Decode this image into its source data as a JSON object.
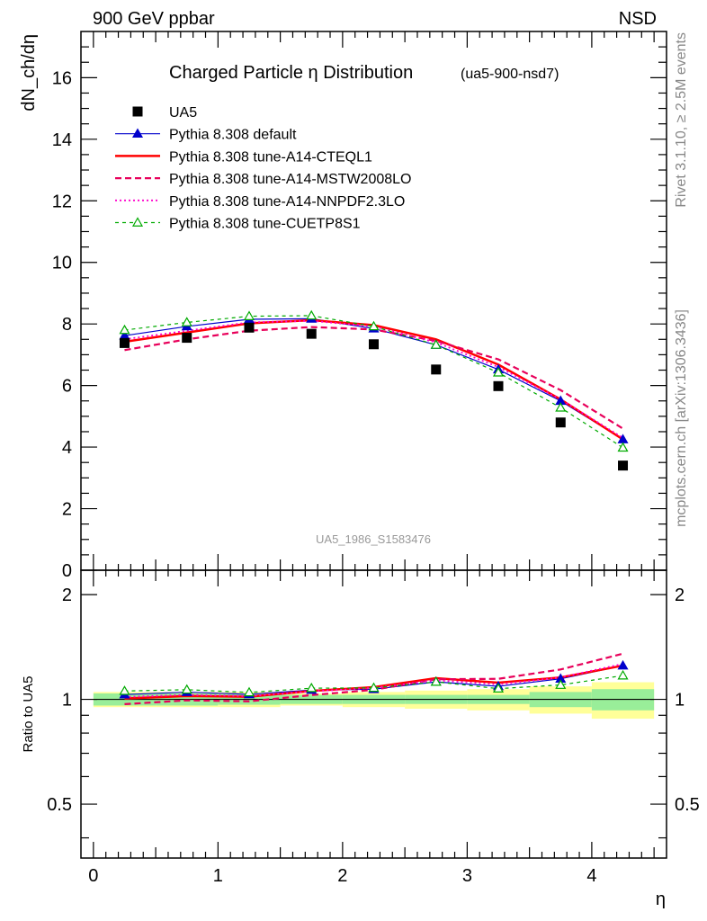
{
  "header": {
    "left": "900 GeV ppbar",
    "right": "NSD"
  },
  "side_labels": {
    "rivet": "Rivet 3.1.10, ≥ 2.5M events",
    "mcplots": "mcplots.cern.ch [arXiv:1306.3436]"
  },
  "chart_data": {
    "type": "line",
    "title": "Charged Particle η Distribution",
    "subtitle": "(ua5-900-nsd7)",
    "analysis_label": "UA5_1986_S1583476",
    "xlabel": "η",
    "ylabel": "dN_ch/dη",
    "ratio_ylabel": "Ratio to UA5",
    "xlim": [
      -0.1,
      4.6
    ],
    "ylim": [
      0,
      17.5
    ],
    "ratio_ylim": [
      0.35,
      2.35
    ],
    "x_ticks": [
      "0",
      "1",
      "2",
      "3",
      "4"
    ],
    "y_ticks": [
      "0",
      "2",
      "4",
      "6",
      "8",
      "10",
      "12",
      "14",
      "16"
    ],
    "ratio_ticks": [
      "0.5",
      "1",
      "2"
    ],
    "x": [
      0.25,
      0.75,
      1.25,
      1.75,
      2.25,
      2.75,
      3.25,
      3.75,
      4.25
    ],
    "data": {
      "name": "UA5",
      "values": [
        7.38,
        7.55,
        7.88,
        7.68,
        7.34,
        6.52,
        5.98,
        4.8,
        3.4
      ]
    },
    "band_inner": [
      0.04,
      0.04,
      0.035,
      0.03,
      0.03,
      0.03,
      0.03,
      0.05,
      0.07
    ],
    "band_outer": [
      0.05,
      0.05,
      0.05,
      0.04,
      0.05,
      0.06,
      0.07,
      0.09,
      0.12
    ],
    "series": [
      {
        "name": "Pythia 8.308 default",
        "color": "#0000cc",
        "style": "solid",
        "marker": "triangle-filled",
        "values": [
          7.62,
          7.92,
          8.15,
          8.17,
          7.85,
          7.32,
          6.52,
          5.5,
          4.25
        ]
      },
      {
        "name": "Pythia 8.308 tune-A14-CTEQL1",
        "color": "#ff0000",
        "style": "solid-thick",
        "marker": "none",
        "values": [
          7.42,
          7.72,
          8.02,
          8.12,
          7.96,
          7.5,
          6.68,
          5.55,
          4.25
        ]
      },
      {
        "name": "Pythia 8.308 tune-A14-MSTW2008LO",
        "color": "#e8005a",
        "style": "dashed",
        "marker": "none",
        "values": [
          7.15,
          7.5,
          7.78,
          7.9,
          7.82,
          7.45,
          6.85,
          5.85,
          4.6
        ]
      },
      {
        "name": "Pythia 8.308 tune-A14-NNPDF2.3LO",
        "color": "#ff00cc",
        "style": "dotted",
        "marker": "none",
        "values": [
          7.5,
          7.78,
          8.05,
          8.1,
          7.92,
          7.4,
          6.6,
          5.55,
          4.3
        ]
      },
      {
        "name": "Pythia 8.308 tune-CUETP8S1",
        "color": "#00aa00",
        "style": "dashed-thin",
        "marker": "triangle-open",
        "values": [
          7.8,
          8.05,
          8.25,
          8.27,
          7.92,
          7.32,
          6.42,
          5.28,
          3.98
        ]
      }
    ]
  }
}
